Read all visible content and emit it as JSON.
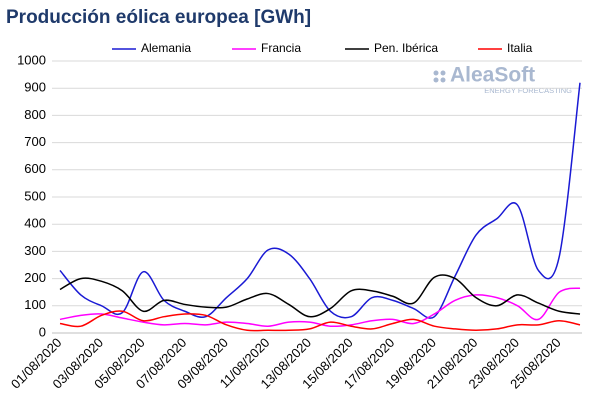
{
  "chart_data": {
    "type": "line",
    "title": "Producción eólica europea [GWh]",
    "logo": {
      "name": "AleaSoft",
      "tagline": "ENERGY FORECASTING"
    },
    "categories": [
      "01/08/2020",
      null,
      "03/08/2020",
      null,
      "05/08/2020",
      null,
      "07/08/2020",
      null,
      "09/08/2020",
      null,
      "11/08/2020",
      null,
      "13/08/2020",
      null,
      "15/08/2020",
      null,
      "17/08/2020",
      null,
      "19/08/2020",
      null,
      "21/08/2020",
      null,
      "23/08/2020",
      null,
      "25/08/2020",
      null
    ],
    "series": [
      {
        "name": "Alemania",
        "color": "#1a1ad4",
        "values": [
          230,
          140,
          100,
          75,
          225,
          120,
          80,
          60,
          130,
          200,
          305,
          290,
          200,
          80,
          60,
          130,
          120,
          90,
          60,
          210,
          360,
          420,
          470,
          230,
          280,
          920
        ]
      },
      {
        "name": "Francia",
        "color": "#ff00ff",
        "values": [
          50,
          65,
          70,
          55,
          40,
          30,
          35,
          30,
          40,
          35,
          25,
          40,
          40,
          25,
          30,
          45,
          50,
          35,
          70,
          120,
          140,
          130,
          100,
          50,
          150,
          165
        ]
      },
      {
        "name": "Pen. Ibérica",
        "color": "#000000",
        "values": [
          160,
          200,
          190,
          155,
          80,
          120,
          105,
          95,
          95,
          125,
          145,
          105,
          60,
          90,
          155,
          155,
          135,
          110,
          205,
          200,
          130,
          100,
          140,
          110,
          80,
          70
        ]
      },
      {
        "name": "Italia",
        "color": "#ff0000",
        "values": [
          35,
          25,
          65,
          80,
          45,
          60,
          70,
          65,
          30,
          10,
          10,
          10,
          15,
          40,
          25,
          15,
          35,
          50,
          25,
          15,
          10,
          15,
          30,
          30,
          45,
          30
        ]
      }
    ],
    "ylim": [
      0,
      1000
    ],
    "yticks": [
      0,
      100,
      200,
      300,
      400,
      500,
      600,
      700,
      800,
      900,
      1000
    ],
    "grid": true
  }
}
